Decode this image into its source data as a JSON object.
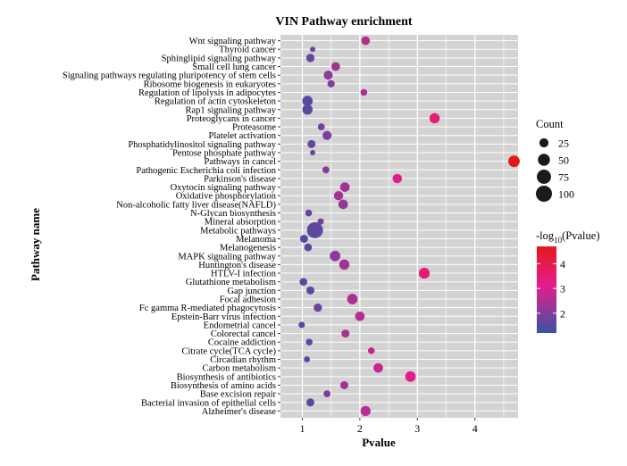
{
  "chart_data": {
    "type": "scatter",
    "title": "VIN Pathway enrichment",
    "xlabel": "Pvalue",
    "ylabel": "Pathway name",
    "xlim": [
      0.62,
      4.75
    ],
    "xticks": [
      1,
      2,
      3,
      4
    ],
    "grid": true,
    "panel_color": "#d3d3d3",
    "color_low": "#3a54a4",
    "color_mid": "#e61c8c",
    "color_high": "#e31a1c",
    "color_range": [
      1.2,
      4.7
    ],
    "size_legend": {
      "title": "Count",
      "values": [
        25,
        50,
        75,
        100
      ]
    },
    "color_legend": {
      "title_prefix": "-log",
      "title_sub": "10",
      "title_suffix": "(Pvalue)",
      "ticks": [
        2,
        3,
        4
      ]
    },
    "points": [
      {
        "name": "Wnt signaling pathway",
        "x": 2.1,
        "color_value": 2.6,
        "count": 22
      },
      {
        "name": "Thyroid cancer",
        "x": 1.18,
        "color_value": 1.6,
        "count": 5
      },
      {
        "name": "Sphinglipid signaling pathway",
        "x": 1.14,
        "color_value": 1.7,
        "count": 20
      },
      {
        "name": "Small cell lung cancer",
        "x": 1.58,
        "color_value": 2.3,
        "count": 22
      },
      {
        "name": "Signaling pathways regulating pluripotency of stem cells",
        "x": 1.45,
        "color_value": 2.1,
        "count": 24
      },
      {
        "name": "Ribosome biogenesis in eukaryotes",
        "x": 1.5,
        "color_value": 2.0,
        "count": 14
      },
      {
        "name": "Regulation of lipolysis in adipocytes",
        "x": 2.07,
        "color_value": 2.5,
        "count": 11
      },
      {
        "name": "Regulation of actin cytoskeleton",
        "x": 1.09,
        "color_value": 1.5,
        "count": 35
      },
      {
        "name": "Rap1 signaling pathway",
        "x": 1.09,
        "color_value": 1.5,
        "count": 34
      },
      {
        "name": "Proteoglycans in cancer",
        "x": 3.3,
        "color_value": 3.4,
        "count": 34
      },
      {
        "name": "Proteasome",
        "x": 1.33,
        "color_value": 1.8,
        "count": 12
      },
      {
        "name": "Platelet activation",
        "x": 1.43,
        "color_value": 1.9,
        "count": 25
      },
      {
        "name": "Phosphatidylinositol signaling pathway",
        "x": 1.16,
        "color_value": 1.7,
        "count": 18
      },
      {
        "name": "Pentose phosphate pathway",
        "x": 1.18,
        "color_value": 1.6,
        "count": 5
      },
      {
        "name": "Pathways in cancel",
        "x": 4.68,
        "color_value": 4.7,
        "count": 45
      },
      {
        "name": "Pathogenic Escherichia coli infection",
        "x": 1.41,
        "color_value": 2.1,
        "count": 12
      },
      {
        "name": "Parkinson's disease",
        "x": 2.65,
        "color_value": 3.0,
        "count": 27
      },
      {
        "name": "Oxytocin signaling pathway",
        "x": 1.74,
        "color_value": 2.4,
        "count": 28
      },
      {
        "name": "Oxidative phosphorylation",
        "x": 1.63,
        "color_value": 2.4,
        "count": 26
      },
      {
        "name": "Non-alcoholic fatty liver disease(NAFLD)",
        "x": 1.71,
        "color_value": 2.2,
        "count": 28
      },
      {
        "name": "N-Glycan biosynthesis",
        "x": 1.11,
        "color_value": 1.6,
        "count": 11
      },
      {
        "name": "Mineral absorption",
        "x": 1.32,
        "color_value": 1.8,
        "count": 9
      },
      {
        "name": "Metabolic pathways",
        "x": 1.22,
        "color_value": 1.6,
        "count": 100
      },
      {
        "name": "Melanoma",
        "x": 1.03,
        "color_value": 1.4,
        "count": 18
      },
      {
        "name": "Melanogenesis",
        "x": 1.1,
        "color_value": 1.6,
        "count": 16
      },
      {
        "name": "MAPK signaling pathway",
        "x": 1.57,
        "color_value": 2.1,
        "count": 36
      },
      {
        "name": "Huntington's disease",
        "x": 1.73,
        "color_value": 2.4,
        "count": 34
      },
      {
        "name": "HTLV-I infection",
        "x": 3.12,
        "color_value": 3.4,
        "count": 40
      },
      {
        "name": "Glutathione metabolism",
        "x": 1.02,
        "color_value": 1.4,
        "count": 16
      },
      {
        "name": "Gap junction",
        "x": 1.14,
        "color_value": 1.6,
        "count": 18
      },
      {
        "name": "Focal adhesion",
        "x": 1.87,
        "color_value": 2.5,
        "count": 36
      },
      {
        "name": "Fc gamma R-mediated phagocytosis",
        "x": 1.27,
        "color_value": 1.8,
        "count": 20
      },
      {
        "name": "Epstein-Barr virus infection",
        "x": 2.0,
        "color_value": 2.6,
        "count": 28
      },
      {
        "name": "Endometrial cancel",
        "x": 0.99,
        "color_value": 1.4,
        "count": 9
      },
      {
        "name": "Colorectal cancel",
        "x": 1.75,
        "color_value": 2.4,
        "count": 18
      },
      {
        "name": "Cocaine addiction",
        "x": 1.12,
        "color_value": 1.5,
        "count": 11
      },
      {
        "name": "Citrate cycle(TCA cycle)",
        "x": 2.2,
        "color_value": 2.7,
        "count": 11
      },
      {
        "name": "Circadian rhythm",
        "x": 1.08,
        "color_value": 1.5,
        "count": 8
      },
      {
        "name": "Carbon metabolism",
        "x": 2.32,
        "color_value": 2.8,
        "count": 28
      },
      {
        "name": "Biosynthesis of antibiotics",
        "x": 2.88,
        "color_value": 3.2,
        "count": 36
      },
      {
        "name": "Biosynthesis of amino acids",
        "x": 1.73,
        "color_value": 2.4,
        "count": 18
      },
      {
        "name": "Base excision repair",
        "x": 1.43,
        "color_value": 2.0,
        "count": 12
      },
      {
        "name": "Bacterial invasion of epithelial cells",
        "x": 1.14,
        "color_value": 1.6,
        "count": 18
      },
      {
        "name": "Alzheimer's disease",
        "x": 2.1,
        "color_value": 2.6,
        "count": 32
      }
    ]
  }
}
